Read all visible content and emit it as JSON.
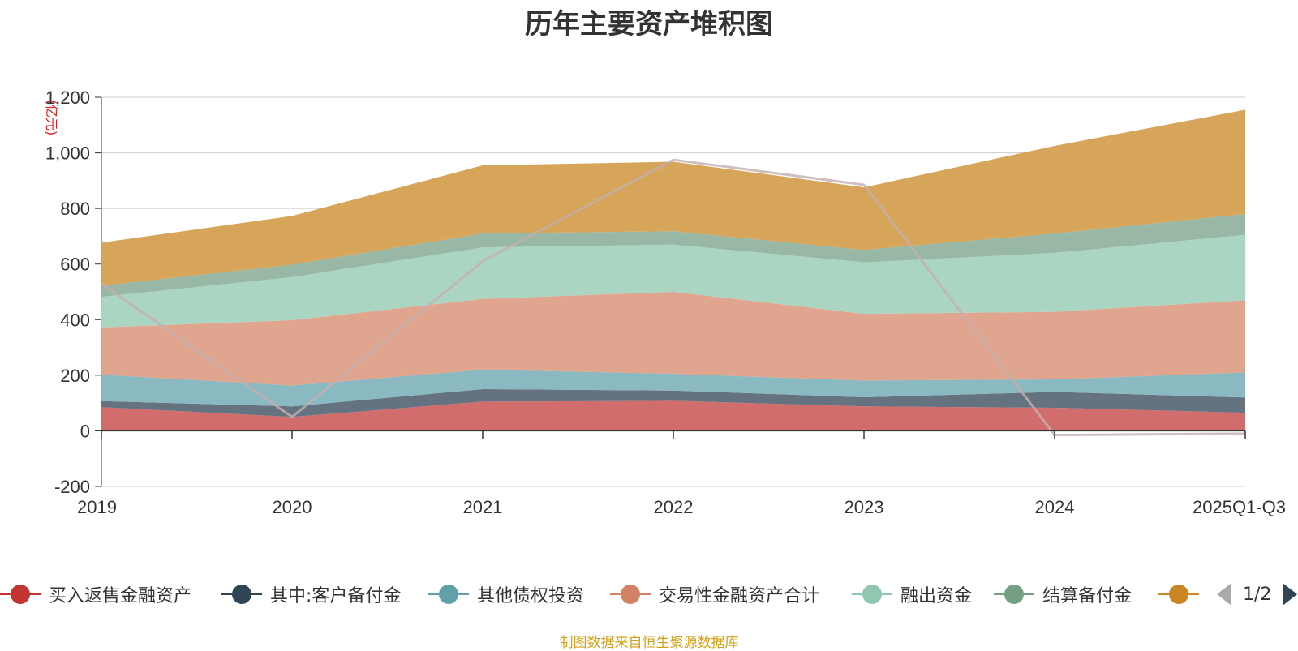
{
  "chart_data": {
    "type": "area",
    "stacked": true,
    "title": "历年主要资产堆积图",
    "ylabel": "亿元",
    "ylim": [
      -200,
      1200
    ],
    "yticks": [
      -200,
      0,
      200,
      400,
      600,
      800,
      1000,
      1200
    ],
    "ytick_labels": [
      "-200",
      "0",
      "200",
      "400",
      "600",
      "800",
      "1,000",
      "1,200"
    ],
    "categories": [
      "2019",
      "2020",
      "2021",
      "2022",
      "2023",
      "2024",
      "2025Q1-Q3"
    ],
    "grid": true,
    "series": [
      {
        "name": "买入返售金融资产",
        "color": "#d06565",
        "values": [
          85,
          50,
          105,
          108,
          88,
          83,
          65
        ]
      },
      {
        "name": "其中:客户备付金",
        "color": "#5d6b7a",
        "values": [
          22,
          38,
          45,
          37,
          33,
          57,
          55
        ]
      },
      {
        "name": "其他债权投资",
        "color": "#84b5bf",
        "values": [
          95,
          75,
          70,
          60,
          60,
          45,
          90
        ]
      },
      {
        "name": "交易性金融资产合计",
        "color": "#dea088",
        "values": [
          170,
          235,
          255,
          295,
          240,
          243,
          260
        ]
      },
      {
        "name": "融出资金",
        "color": "#a6d3c0",
        "values": [
          110,
          155,
          185,
          170,
          185,
          212,
          235
        ]
      },
      {
        "name": "结算备付金",
        "color": "#93b3a0",
        "values": [
          40,
          45,
          50,
          48,
          45,
          70,
          75
        ]
      },
      {
        "name": "",
        "color": "#d4a050",
        "values": [
          155,
          175,
          245,
          250,
          225,
          315,
          375
        ]
      }
    ],
    "overlay_line": {
      "color": "#c4afaf",
      "values": [
        530,
        50,
        610,
        975,
        885,
        -15,
        -10
      ]
    },
    "legend_position": "bottom"
  },
  "legend": {
    "items": [
      {
        "label": "买入返售金融资产",
        "color": "#c23531"
      },
      {
        "label": "其中:客户备付金",
        "color": "#2f4554"
      },
      {
        "label": "其他债权投资",
        "color": "#61a0a8"
      },
      {
        "label": "交易性金融资产合计",
        "color": "#d48265"
      },
      {
        "label": "融出资金",
        "color": "#91c7ae"
      },
      {
        "label": "结算备付金",
        "color": "#749f83"
      },
      {
        "label": "",
        "color": "#ca8622"
      }
    ],
    "page": "1/2"
  },
  "source_text": "制图数据来自恒生聚源数据库"
}
